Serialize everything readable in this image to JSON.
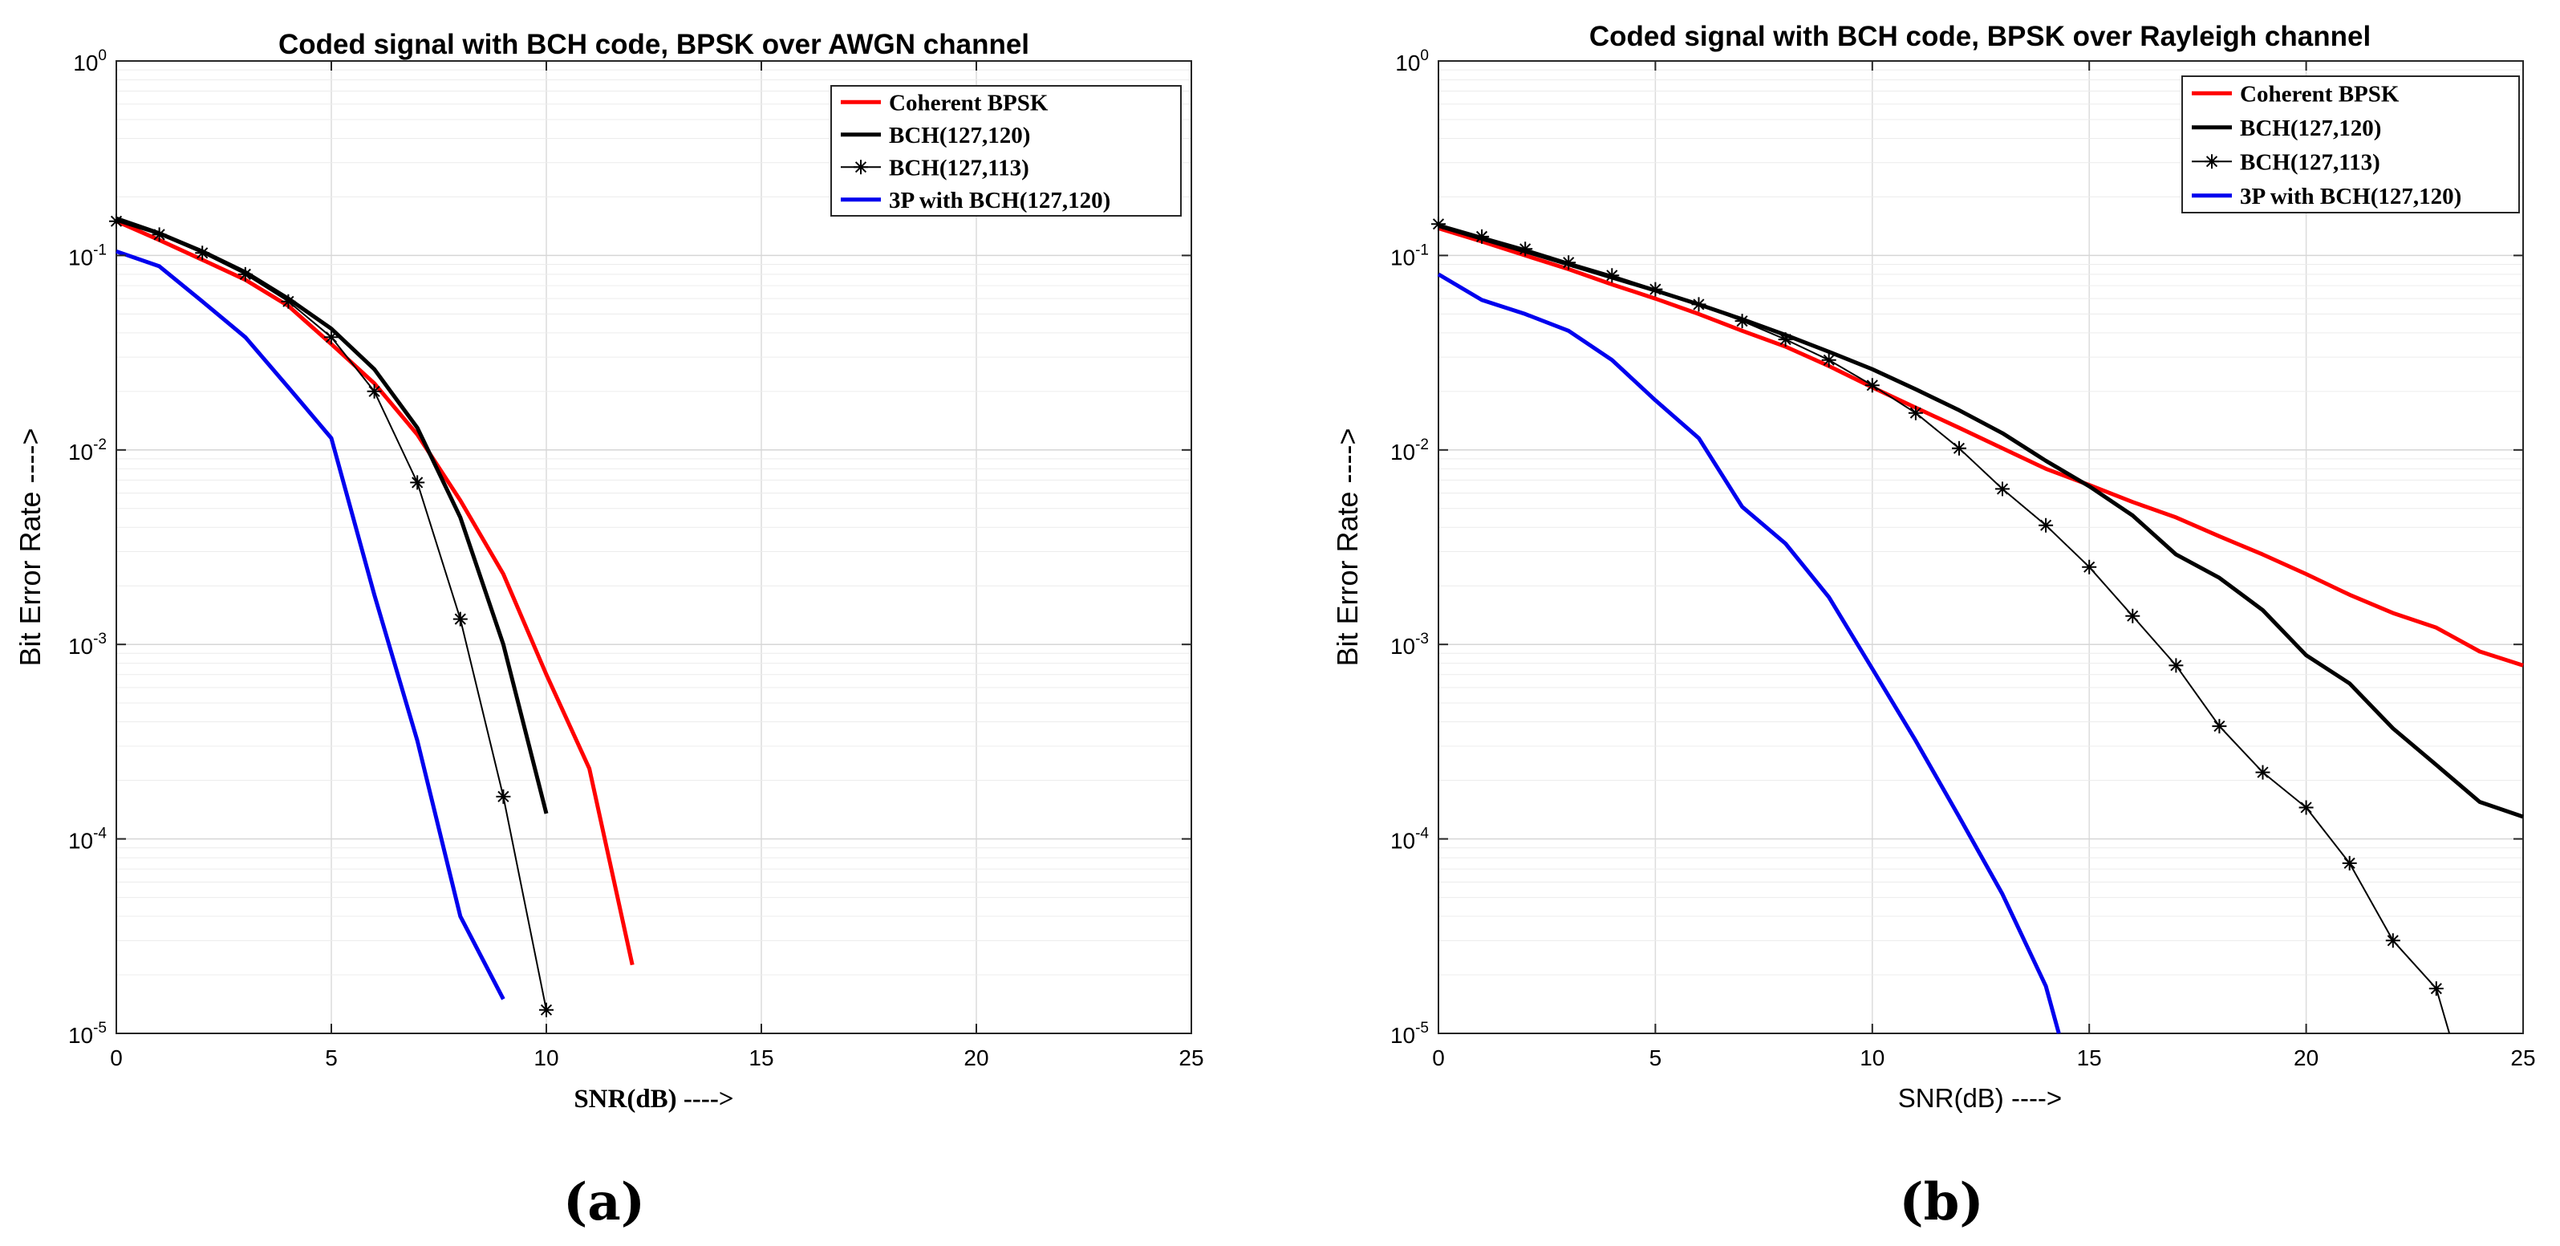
{
  "chart_data": [
    {
      "type": "line",
      "title": "Coded signal with BCH code, BPSK over AWGN channel",
      "xlabel": "SNR(dB) ---->",
      "ylabel": "Bit Error Rate ---->",
      "panel_label": "(a)",
      "x_scale": "linear",
      "y_scale": "log",
      "xlim": [
        0,
        25
      ],
      "ylim": [
        1e-05,
        1
      ],
      "xticks": [
        0,
        5,
        10,
        15,
        20,
        25
      ],
      "yticks": [
        {
          "base": "10",
          "exp": "-5",
          "value": 1e-05
        },
        {
          "base": "10",
          "exp": "-4",
          "value": 0.0001
        },
        {
          "base": "10",
          "exp": "-3",
          "value": 0.001
        },
        {
          "base": "10",
          "exp": "-2",
          "value": 0.01
        },
        {
          "base": "10",
          "exp": "-1",
          "value": 0.1
        },
        {
          "base": "10",
          "exp": "0",
          "value": 1
        }
      ],
      "grid": true,
      "legend_position": "top-right",
      "series": [
        {
          "name": "Coherent BPSK",
          "color": "#ff0000",
          "marker": "none",
          "x": [
            0,
            1,
            2,
            3,
            4,
            5,
            6,
            7,
            8,
            9,
            10,
            11,
            12
          ],
          "y": [
            0.15,
            0.12,
            0.095,
            0.075,
            0.055,
            0.035,
            0.022,
            0.012,
            0.0055,
            0.0023,
            0.0007,
            0.00023,
            2.25e-05
          ]
        },
        {
          "name": "BCH(127,120)",
          "color": "#000000",
          "marker": "none",
          "x": [
            0,
            1,
            2,
            3,
            4,
            5,
            6,
            7,
            8,
            9,
            10
          ],
          "y": [
            0.155,
            0.13,
            0.105,
            0.082,
            0.06,
            0.042,
            0.026,
            0.013,
            0.0045,
            0.001,
            0.000135
          ]
        },
        {
          "name": "BCH(127,113)",
          "color": "#000000",
          "marker": "asterisk",
          "x": [
            0,
            1,
            2,
            3,
            4,
            5,
            6,
            7,
            8,
            9,
            10
          ],
          "y": [
            0.15,
            0.128,
            0.103,
            0.08,
            0.058,
            0.038,
            0.02,
            0.0068,
            0.00135,
            0.000165,
            1.32e-05
          ]
        },
        {
          "name": "3P with BCH(127,120)",
          "color": "#0000ee",
          "marker": "none",
          "x": [
            0,
            1,
            2,
            3,
            4,
            5,
            6,
            7,
            8,
            9
          ],
          "y": [
            0.105,
            0.088,
            0.058,
            0.038,
            0.021,
            0.0115,
            0.0018,
            0.00032,
            4e-05,
            1.5e-05
          ]
        }
      ]
    },
    {
      "type": "line",
      "title": "Coded signal with BCH code, BPSK over Rayleigh channel",
      "xlabel": "SNR(dB) ---->",
      "ylabel": "Bit Error Rate ---->",
      "panel_label": "(b)",
      "x_scale": "linear",
      "y_scale": "log",
      "xlim": [
        0,
        25
      ],
      "ylim": [
        1e-05,
        1
      ],
      "xticks": [
        0,
        5,
        10,
        15,
        20,
        25
      ],
      "yticks": [
        {
          "base": "10",
          "exp": "-5",
          "value": 1e-05
        },
        {
          "base": "10",
          "exp": "-4",
          "value": 0.0001
        },
        {
          "base": "10",
          "exp": "-3",
          "value": 0.001
        },
        {
          "base": "10",
          "exp": "-2",
          "value": 0.01
        },
        {
          "base": "10",
          "exp": "-1",
          "value": 0.1
        },
        {
          "base": "10",
          "exp": "0",
          "value": 1
        }
      ],
      "grid": true,
      "legend_position": "top-right",
      "series": [
        {
          "name": "Coherent BPSK",
          "color": "#ff0000",
          "marker": "none",
          "x": [
            0,
            1,
            2,
            3,
            4,
            5,
            6,
            7,
            8,
            9,
            10,
            11,
            12,
            13,
            14,
            15,
            16,
            17,
            18,
            19,
            20,
            21,
            22,
            23,
            24,
            25
          ],
          "y": [
            0.138,
            0.118,
            0.1,
            0.085,
            0.071,
            0.06,
            0.05,
            0.041,
            0.034,
            0.027,
            0.021,
            0.0165,
            0.013,
            0.0102,
            0.008,
            0.0066,
            0.0054,
            0.0045,
            0.0036,
            0.0029,
            0.0023,
            0.0018,
            0.00145,
            0.00122,
            0.00092,
            0.00078
          ]
        },
        {
          "name": "BCH(127,120)",
          "color": "#000000",
          "marker": "none",
          "x": [
            0,
            1,
            2,
            3,
            4,
            5,
            6,
            7,
            8,
            9,
            10,
            11,
            12,
            13,
            14,
            15,
            16,
            17,
            18,
            19,
            20,
            21,
            22,
            23,
            24,
            25
          ],
          "y": [
            0.142,
            0.122,
            0.105,
            0.09,
            0.077,
            0.066,
            0.056,
            0.047,
            0.039,
            0.032,
            0.026,
            0.0205,
            0.016,
            0.0122,
            0.0088,
            0.0065,
            0.0046,
            0.0029,
            0.0022,
            0.0015,
            0.00088,
            0.00063,
            0.00037,
            0.00024,
            0.000155,
            0.00013
          ]
        },
        {
          "name": "BCH(127,113)",
          "color": "#000000",
          "marker": "asterisk",
          "x": [
            0,
            1,
            2,
            3,
            4,
            5,
            6,
            7,
            8,
            9,
            10,
            11,
            12,
            13,
            14,
            15,
            16,
            17,
            18,
            19,
            20,
            21,
            22,
            23,
            23.3
          ],
          "y": [
            0.145,
            0.125,
            0.108,
            0.092,
            0.079,
            0.067,
            0.056,
            0.046,
            0.037,
            0.029,
            0.0215,
            0.0155,
            0.0102,
            0.0063,
            0.0041,
            0.0025,
            0.0014,
            0.00078,
            0.00038,
            0.00022,
            0.000145,
            7.5e-05,
            3e-05,
            1.7e-05,
            1e-05
          ]
        },
        {
          "name": "3P with BCH(127,120)",
          "color": "#0000ee",
          "marker": "none",
          "x": [
            0,
            1,
            2,
            3,
            4,
            5,
            6,
            7,
            8,
            9,
            10,
            11,
            12,
            13,
            14,
            14.3
          ],
          "y": [
            0.08,
            0.059,
            0.05,
            0.041,
            0.029,
            0.018,
            0.0115,
            0.0051,
            0.0033,
            0.00175,
            0.00075,
            0.00032,
            0.00013,
            5.2e-05,
            1.75e-05,
            1e-05
          ]
        }
      ]
    }
  ]
}
